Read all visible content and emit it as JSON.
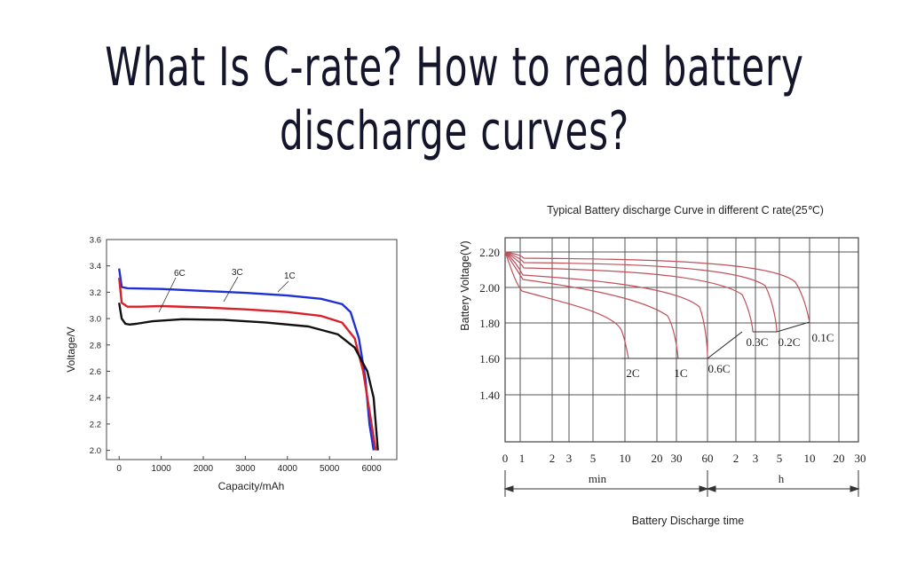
{
  "heading": {
    "line1": "What Is C-rate? How to read battery",
    "line2": "discharge curves?"
  },
  "chart_data": [
    {
      "type": "line",
      "xlabel": "Capacity/mAh",
      "ylabel": "Voltage/V",
      "xlim": [
        -300,
        6600
      ],
      "ylim": [
        1.93,
        3.6
      ],
      "x_ticks": [
        0,
        1000,
        2000,
        3000,
        4000,
        5000,
        6000
      ],
      "y_ticks": [
        2.0,
        2.2,
        2.4,
        2.6,
        2.8,
        3.0,
        3.2,
        3.4,
        3.6
      ],
      "colors": {
        "1C": "#1f2fd6",
        "3C": "#d8202a",
        "6C": "#111111"
      },
      "series": [
        {
          "name": "1C",
          "color": "#1f2fd6",
          "x": [
            0,
            60,
            200,
            1000,
            2000,
            3000,
            4000,
            4800,
            5300,
            5500,
            5700,
            5850,
            5950,
            6050
          ],
          "y": [
            3.38,
            3.24,
            3.23,
            3.225,
            3.21,
            3.195,
            3.175,
            3.15,
            3.11,
            3.05,
            2.85,
            2.55,
            2.2,
            2.0
          ]
        },
        {
          "name": "3C",
          "color": "#d8202a",
          "x": [
            0,
            60,
            200,
            500,
            1000,
            2000,
            3000,
            4000,
            4800,
            5300,
            5600,
            5800,
            5950,
            6050,
            6100
          ],
          "y": [
            3.31,
            3.12,
            3.09,
            3.09,
            3.095,
            3.085,
            3.07,
            3.05,
            3.02,
            2.97,
            2.85,
            2.6,
            2.3,
            2.1,
            2.0
          ]
        },
        {
          "name": "6C",
          "color": "#111111",
          "x": [
            0,
            60,
            150,
            250,
            400,
            800,
            1500,
            2500,
            3500,
            4500,
            5200,
            5600,
            5900,
            6050,
            6100,
            6150
          ],
          "y": [
            3.12,
            3.0,
            2.96,
            2.955,
            2.96,
            2.98,
            2.995,
            2.99,
            2.97,
            2.94,
            2.88,
            2.78,
            2.6,
            2.4,
            2.2,
            2.0
          ]
        }
      ],
      "annotations": [
        {
          "text": "6C"
        },
        {
          "text": "3C"
        },
        {
          "text": "1C"
        }
      ]
    },
    {
      "type": "line",
      "title": "Typical Battery discharge Curve in different C rate(25℃)",
      "ylabel": "Battery Voltage(V)",
      "xlabel": "Battery Discharge time",
      "y_ticks": [
        "2.20",
        "2.00",
        "1.80",
        "1.60",
        "1.40"
      ],
      "x_ticks": [
        "0",
        "1",
        "2",
        "3",
        "5",
        "10",
        "20",
        "30",
        "60",
        "2",
        "3",
        "5",
        "10",
        "20",
        "30"
      ],
      "x_units": [
        "min",
        "h"
      ],
      "curve_color": "#c0505a",
      "series": [
        {
          "name": "2C"
        },
        {
          "name": "1C"
        },
        {
          "name": "0.6C"
        },
        {
          "name": "0.3C"
        },
        {
          "name": "0.2C"
        },
        {
          "name": "0.1C"
        }
      ]
    }
  ]
}
